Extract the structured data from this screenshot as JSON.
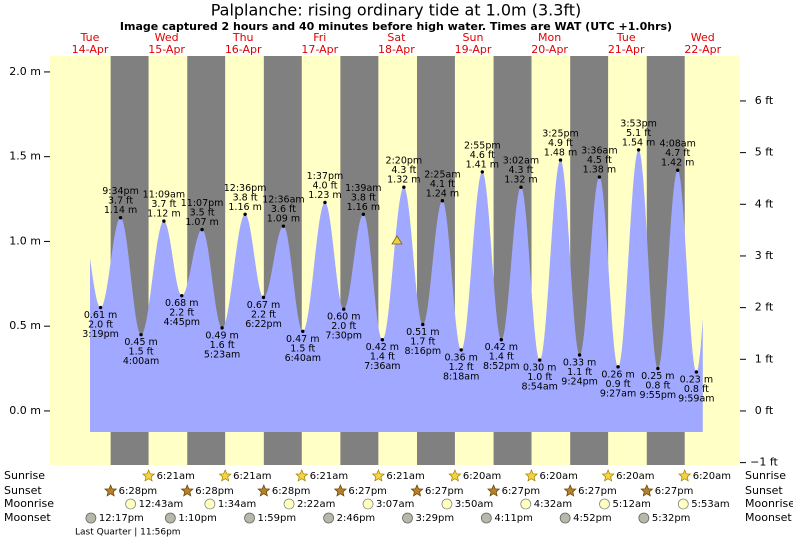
{
  "chart_data": {
    "type": "area",
    "title": "Palplanche: rising  ordinary tide at 1.0m (3.3ft)",
    "subtitle": "Image captured 2 hours and 40 minutes before high water. Times are WAT (UTC +1.0hrs)",
    "days": [
      {
        "weekday": "Tue",
        "date": "14-Apr"
      },
      {
        "weekday": "Wed",
        "date": "15-Apr"
      },
      {
        "weekday": "Thu",
        "date": "16-Apr"
      },
      {
        "weekday": "Fri",
        "date": "17-Apr"
      },
      {
        "weekday": "Sat",
        "date": "18-Apr"
      },
      {
        "weekday": "Sun",
        "date": "19-Apr"
      },
      {
        "weekday": "Mon",
        "date": "20-Apr"
      },
      {
        "weekday": "Tue",
        "date": "21-Apr"
      },
      {
        "weekday": "Wed",
        "date": "22-Apr"
      }
    ],
    "tides": [
      {
        "time": "3:19pm",
        "value": 0.61,
        "value_label": "0.61 m",
        "ft": 2.0,
        "ft_label": "2.0 ft"
      },
      {
        "time": "9:34pm",
        "value": 1.14,
        "value_label": "1.14 m",
        "ft": 3.7,
        "ft_label": "3.7 ft"
      },
      {
        "time": "4:00am",
        "value": 0.45,
        "value_label": "0.45 m",
        "ft": 1.5,
        "ft_label": "1.5 ft"
      },
      {
        "time": "11:09am",
        "value": 1.12,
        "value_label": "1.12 m",
        "ft": 3.7,
        "ft_label": "3.7 ft"
      },
      {
        "time": "4:45pm",
        "value": 0.68,
        "value_label": "0.68 m",
        "ft": 2.2,
        "ft_label": "2.2 ft"
      },
      {
        "time": "11:07pm",
        "value": 1.07,
        "value_label": "1.07 m",
        "ft": 3.5,
        "ft_label": "3.5 ft"
      },
      {
        "time": "5:23am",
        "value": 0.49,
        "value_label": "0.49 m",
        "ft": 1.6,
        "ft_label": "1.6 ft"
      },
      {
        "time": "12:36pm",
        "value": 1.16,
        "value_label": "1.16 m",
        "ft": 3.8,
        "ft_label": "3.8 ft"
      },
      {
        "time": "6:22pm",
        "value": 0.67,
        "value_label": "0.67 m",
        "ft": 2.2,
        "ft_label": "2.2 ft"
      },
      {
        "time": "12:36am",
        "value": 1.09,
        "value_label": "1.09 m",
        "ft": 3.6,
        "ft_label": "3.6 ft"
      },
      {
        "time": "6:40am",
        "value": 0.47,
        "value_label": "0.47 m",
        "ft": 1.5,
        "ft_label": "1.5 ft"
      },
      {
        "time": "1:37pm",
        "value": 1.23,
        "value_label": "1.23 m",
        "ft": 4.0,
        "ft_label": "4.0 ft"
      },
      {
        "time": "7:30pm",
        "value": 0.6,
        "value_label": "0.60 m",
        "ft": 2.0,
        "ft_label": "2.0 ft"
      },
      {
        "time": "1:39am",
        "value": 1.16,
        "value_label": "1.16 m",
        "ft": 3.8,
        "ft_label": "3.8 ft"
      },
      {
        "time": "7:36am",
        "value": 0.42,
        "value_label": "0.42 m",
        "ft": 1.4,
        "ft_label": "1.4 ft"
      },
      {
        "time": "2:20pm",
        "value": 1.32,
        "value_label": "1.32 m",
        "ft": 4.3,
        "ft_label": "4.3 ft"
      },
      {
        "time": "8:16pm",
        "value": 0.51,
        "value_label": "0.51 m",
        "ft": 1.7,
        "ft_label": "1.7 ft"
      },
      {
        "time": "2:25am",
        "value": 1.24,
        "value_label": "1.24 m",
        "ft": 4.1,
        "ft_label": "4.1 ft"
      },
      {
        "time": "8:18am",
        "value": 0.36,
        "value_label": "0.36 m",
        "ft": 1.2,
        "ft_label": "1.2 ft"
      },
      {
        "time": "2:55pm",
        "value": 1.41,
        "value_label": "1.41 m",
        "ft": 4.6,
        "ft_label": "4.6 ft"
      },
      {
        "time": "8:52pm",
        "value": 0.42,
        "value_label": "0.42 m",
        "ft": 1.4,
        "ft_label": "1.4 ft"
      },
      {
        "time": "3:02am",
        "value": 1.32,
        "value_label": "1.32 m",
        "ft": 4.3,
        "ft_label": "4.3 ft"
      },
      {
        "time": "8:54am",
        "value": 0.3,
        "value_label": "0.30 m",
        "ft": 1.0,
        "ft_label": "1.0 ft"
      },
      {
        "time": "3:25pm",
        "value": 1.48,
        "value_label": "1.48 m",
        "ft": 4.9,
        "ft_label": "4.9 ft"
      },
      {
        "time": "9:24pm",
        "value": 0.33,
        "value_label": "0.33 m",
        "ft": 1.1,
        "ft_label": "1.1 ft"
      },
      {
        "time": "3:36am",
        "value": 1.38,
        "value_label": "1.38 m",
        "ft": 4.5,
        "ft_label": "4.5 ft"
      },
      {
        "time": "9:27am",
        "value": 0.26,
        "value_label": "0.26 m",
        "ft": 0.9,
        "ft_label": "0.9 ft"
      },
      {
        "time": "3:53pm",
        "value": 1.54,
        "value_label": "1.54 m",
        "ft": 5.1,
        "ft_label": "5.1 ft"
      },
      {
        "time": "9:55pm",
        "value": 0.25,
        "value_label": "0.25 m",
        "ft": 0.8,
        "ft_label": "0.8 ft"
      },
      {
        "time": "4:08am",
        "value": 1.42,
        "value_label": "1.42 m",
        "ft": 4.7,
        "ft_label": "4.7 ft"
      },
      {
        "time": "9:59am",
        "value": 0.23,
        "value_label": "0.23 m",
        "ft": 0.8,
        "ft_label": "0.8 ft"
      }
    ],
    "ylim": [
      -0.319,
      2.094
    ],
    "yticks": [
      {
        "value": 0.0,
        "label": "0.0 m"
      },
      {
        "value": 0.5,
        "label": "0.5 m"
      },
      {
        "value": 1.0,
        "label": "1.0 m"
      },
      {
        "value": 1.5,
        "label": "1.5 m"
      },
      {
        "value": 2.0,
        "label": "2.0 m"
      }
    ],
    "y2lim": [
      -1.046,
      6.87
    ],
    "y2ticks": [
      {
        "value": -1,
        "label": "−1 ft"
      },
      {
        "value": 0,
        "label": "0 ft"
      },
      {
        "value": 1,
        "label": "1 ft"
      },
      {
        "value": 2,
        "label": "2 ft"
      },
      {
        "value": 3,
        "label": "3 ft"
      },
      {
        "value": 4,
        "label": "4 ft"
      },
      {
        "value": 5,
        "label": "5 ft"
      },
      {
        "value": 6,
        "label": "6 ft"
      }
    ],
    "color": "#a0a8ff",
    "day_color": "#ffffc6",
    "night_color": "#808080",
    "sun_moon": [
      {
        "name": "Sunrise",
        "times": [
          "6:21am",
          "6:21am",
          "6:21am",
          "6:21am",
          "6:20am",
          "6:20am",
          "6:20am",
          "6:20am"
        ]
      },
      {
        "name": "Sunset",
        "times": [
          "6:28pm",
          "6:28pm",
          "6:28pm",
          "6:27pm",
          "6:27pm",
          "6:27pm",
          "6:27pm",
          "6:27pm"
        ]
      },
      {
        "name": "Moonrise",
        "times": [
          "12:43am",
          "1:34am",
          "2:22am",
          "3:07am",
          "3:50am",
          "4:32am",
          "5:12am",
          "5:53am"
        ]
      },
      {
        "name": "Moonset",
        "times": [
          "12:17pm",
          "1:10pm",
          "1:59pm",
          "2:46pm",
          "3:29pm",
          "4:11pm",
          "4:52pm",
          "5:32pm"
        ]
      }
    ],
    "moon_phase": "Last Quarter | 11:56pm"
  }
}
